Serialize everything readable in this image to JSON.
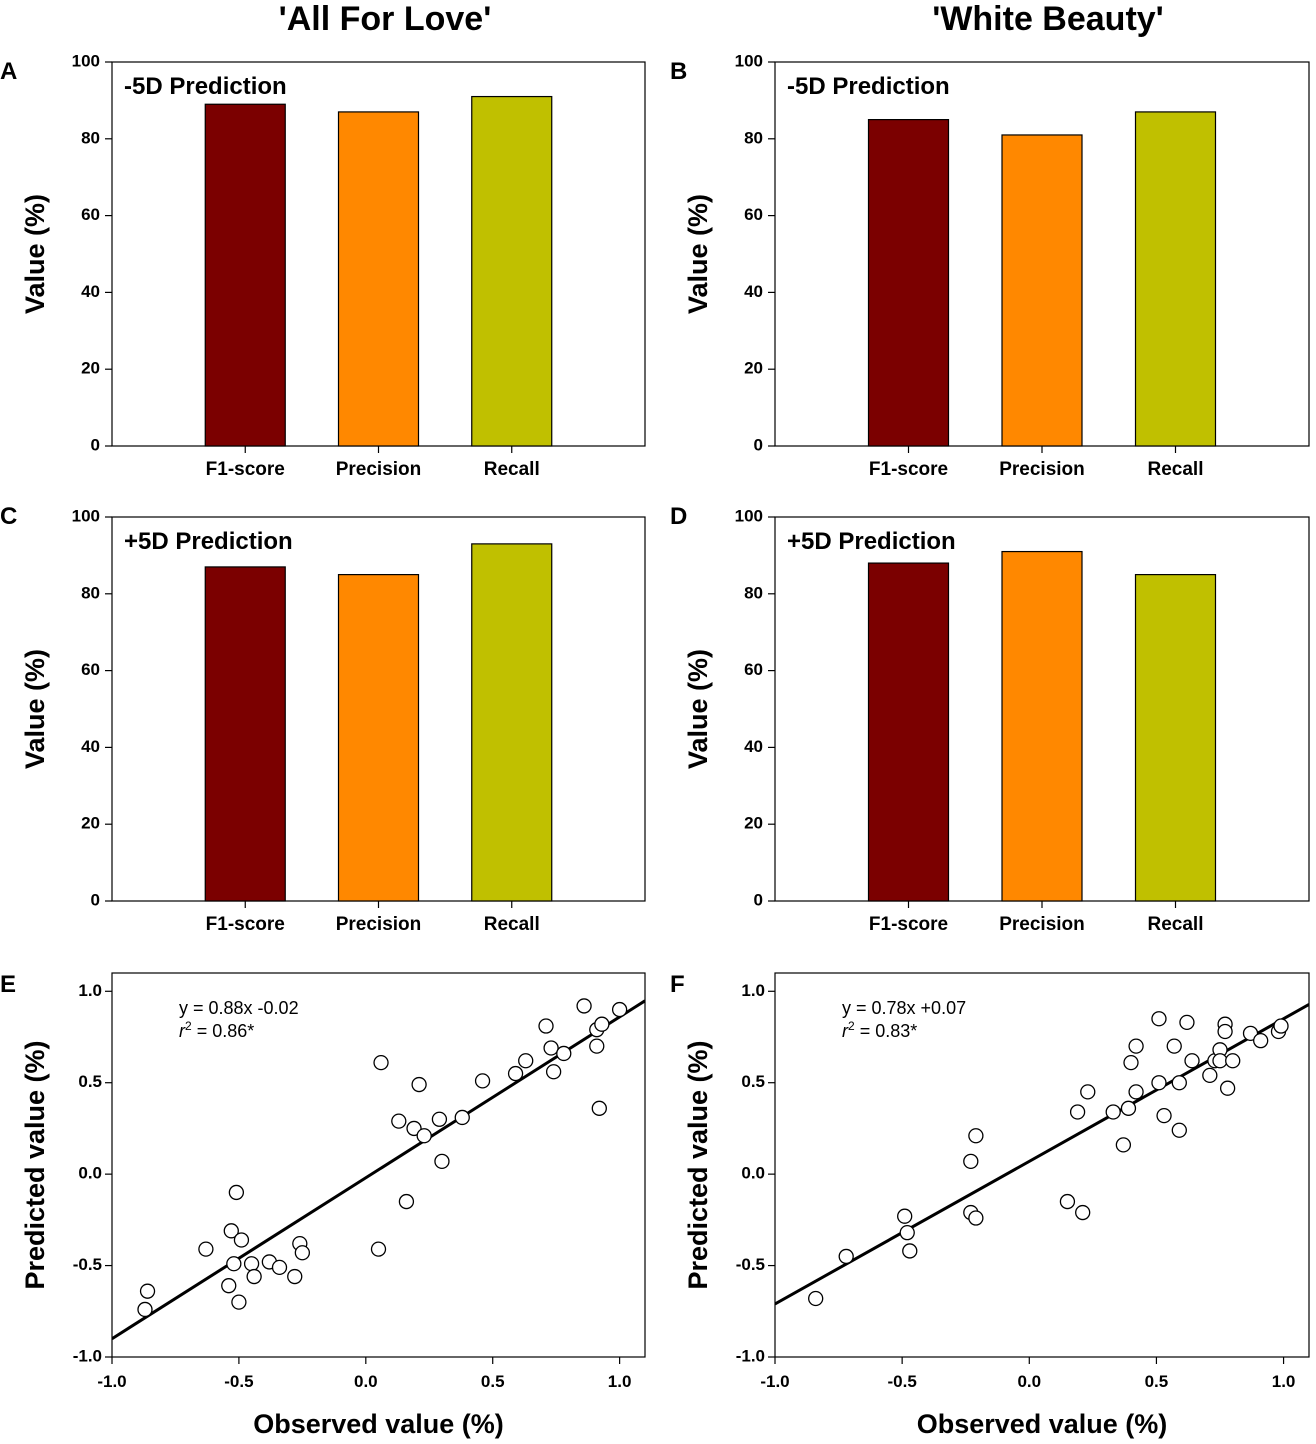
{
  "column_titles": [
    "'All For Love'",
    "'White Beauty'"
  ],
  "chart_data": [
    {
      "panel": "A",
      "type": "bar",
      "column": 0,
      "title": "-5D Prediction",
      "categories": [
        "F1-score",
        "Precision",
        "Recall"
      ],
      "values": [
        89,
        87,
        91
      ],
      "colors": [
        "#7b0000",
        "#ff8800",
        "#c0c000"
      ],
      "ylabel": "Value (%)",
      "xlabel": "",
      "ylim": [
        0,
        100
      ],
      "yticks": [
        0,
        20,
        40,
        60,
        80,
        100
      ],
      "grid": false
    },
    {
      "panel": "B",
      "type": "bar",
      "column": 1,
      "title": "-5D Prediction",
      "categories": [
        "F1-score",
        "Precision",
        "Recall"
      ],
      "values": [
        85,
        81,
        87
      ],
      "colors": [
        "#7b0000",
        "#ff8800",
        "#c0c000"
      ],
      "ylabel": "Value (%)",
      "xlabel": "",
      "ylim": [
        0,
        100
      ],
      "yticks": [
        0,
        20,
        40,
        60,
        80,
        100
      ],
      "grid": false
    },
    {
      "panel": "C",
      "type": "bar",
      "column": 0,
      "title": "+5D Prediction",
      "categories": [
        "F1-score",
        "Precision",
        "Recall"
      ],
      "values": [
        87,
        85,
        93
      ],
      "colors": [
        "#7b0000",
        "#ff8800",
        "#c0c000"
      ],
      "ylabel": "Value (%)",
      "xlabel": "",
      "ylim": [
        0,
        100
      ],
      "yticks": [
        0,
        20,
        40,
        60,
        80,
        100
      ],
      "grid": false
    },
    {
      "panel": "D",
      "type": "bar",
      "column": 1,
      "title": "+5D Prediction",
      "categories": [
        "F1-score",
        "Precision",
        "Recall"
      ],
      "values": [
        88,
        91,
        85
      ],
      "colors": [
        "#7b0000",
        "#ff8800",
        "#c0c000"
      ],
      "ylabel": "Value (%)",
      "xlabel": "",
      "ylim": [
        0,
        100
      ],
      "yticks": [
        0,
        20,
        40,
        60,
        80,
        100
      ],
      "grid": false
    },
    {
      "panel": "E",
      "type": "scatter",
      "column": 0,
      "equation": "y = 0.88x -0.02",
      "r2_label": "= 0.86*",
      "fit": {
        "slope": 0.88,
        "intercept": -0.02
      },
      "xlabel": "Observed value (%)",
      "ylabel": "Predicted value (%)",
      "xlim": [
        -1.0,
        1.1
      ],
      "ylim": [
        -1.0,
        1.1
      ],
      "xticks": [
        -1.0,
        -0.5,
        0.0,
        0.5,
        1.0
      ],
      "yticks": [
        -1.0,
        -0.5,
        0.0,
        0.5,
        1.0
      ],
      "tick_labels": [
        "-1.0",
        "-0.5",
        "0.0",
        "0.5",
        "1.0"
      ],
      "grid": false,
      "points": [
        [
          -0.87,
          -0.74
        ],
        [
          -0.86,
          -0.64
        ],
        [
          -0.63,
          -0.41
        ],
        [
          -0.54,
          -0.61
        ],
        [
          -0.53,
          -0.31
        ],
        [
          -0.52,
          -0.49
        ],
        [
          -0.51,
          -0.1
        ],
        [
          -0.5,
          -0.7
        ],
        [
          -0.49,
          -0.36
        ],
        [
          -0.45,
          -0.49
        ],
        [
          -0.44,
          -0.56
        ],
        [
          -0.38,
          -0.48
        ],
        [
          -0.34,
          -0.51
        ],
        [
          -0.28,
          -0.56
        ],
        [
          -0.26,
          -0.38
        ],
        [
          -0.25,
          -0.43
        ],
        [
          0.05,
          -0.41
        ],
        [
          0.06,
          0.61
        ],
        [
          0.13,
          0.29
        ],
        [
          0.16,
          -0.15
        ],
        [
          0.19,
          0.25
        ],
        [
          0.21,
          0.49
        ],
        [
          0.23,
          0.21
        ],
        [
          0.29,
          0.3
        ],
        [
          0.3,
          0.07
        ],
        [
          0.38,
          0.31
        ],
        [
          0.46,
          0.51
        ],
        [
          0.59,
          0.55
        ],
        [
          0.63,
          0.62
        ],
        [
          0.71,
          0.81
        ],
        [
          0.73,
          0.69
        ],
        [
          0.74,
          0.56
        ],
        [
          0.78,
          0.66
        ],
        [
          0.86,
          0.92
        ],
        [
          0.91,
          0.79
        ],
        [
          0.91,
          0.7
        ],
        [
          0.92,
          0.36
        ],
        [
          0.93,
          0.82
        ],
        [
          1.0,
          0.9
        ]
      ]
    },
    {
      "panel": "F",
      "type": "scatter",
      "column": 1,
      "equation": "y = 0.78x +0.07",
      "r2_label": "= 0.83*",
      "fit": {
        "slope": 0.78,
        "intercept": 0.07
      },
      "xlabel": "Observed value (%)",
      "ylabel": "Predicted value (%)",
      "xlim": [
        -1.0,
        1.1
      ],
      "ylim": [
        -1.0,
        1.1
      ],
      "xticks": [
        -1.0,
        -0.5,
        0.0,
        0.5,
        1.0
      ],
      "yticks": [
        -1.0,
        -0.5,
        0.0,
        0.5,
        1.0
      ],
      "tick_labels": [
        "-1.0",
        "-0.5",
        "0.0",
        "0.5",
        "1.0"
      ],
      "grid": false,
      "points": [
        [
          -0.84,
          -0.68
        ],
        [
          -0.72,
          -0.45
        ],
        [
          -0.49,
          -0.23
        ],
        [
          -0.48,
          -0.32
        ],
        [
          -0.47,
          -0.42
        ],
        [
          -0.23,
          -0.21
        ],
        [
          -0.23,
          0.07
        ],
        [
          -0.21,
          -0.24
        ],
        [
          -0.21,
          0.21
        ],
        [
          0.15,
          -0.15
        ],
        [
          0.19,
          0.34
        ],
        [
          0.21,
          -0.21
        ],
        [
          0.23,
          0.45
        ],
        [
          0.33,
          0.34
        ],
        [
          0.37,
          0.16
        ],
        [
          0.39,
          0.36
        ],
        [
          0.4,
          0.61
        ],
        [
          0.42,
          0.7
        ],
        [
          0.42,
          0.45
        ],
        [
          0.51,
          0.85
        ],
        [
          0.51,
          0.5
        ],
        [
          0.53,
          0.32
        ],
        [
          0.57,
          0.7
        ],
        [
          0.59,
          0.5
        ],
        [
          0.59,
          0.24
        ],
        [
          0.62,
          0.83
        ],
        [
          0.64,
          0.62
        ],
        [
          0.71,
          0.54
        ],
        [
          0.73,
          0.62
        ],
        [
          0.75,
          0.68
        ],
        [
          0.75,
          0.62
        ],
        [
          0.77,
          0.82
        ],
        [
          0.77,
          0.78
        ],
        [
          0.78,
          0.47
        ],
        [
          0.8,
          0.62
        ],
        [
          0.87,
          0.77
        ],
        [
          0.91,
          0.73
        ],
        [
          0.98,
          0.78
        ],
        [
          0.99,
          0.81
        ]
      ]
    }
  ]
}
